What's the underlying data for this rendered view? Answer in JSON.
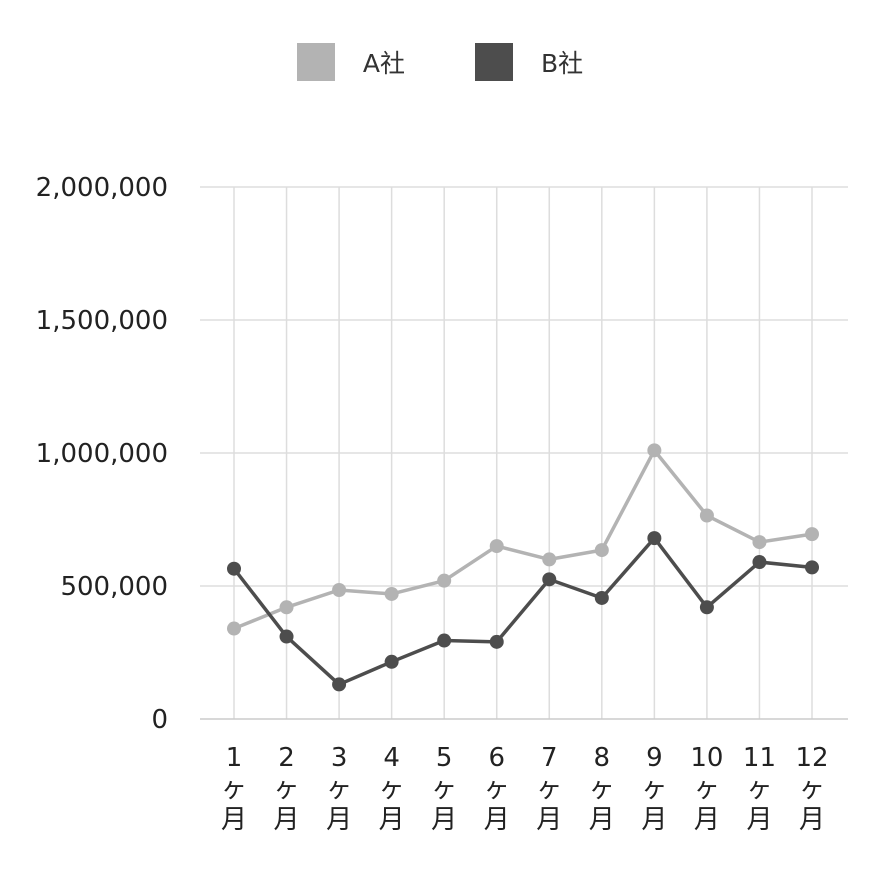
{
  "colors": {
    "A": "#b3b3b3",
    "B": "#4d4d4d",
    "grid": "#dddddd",
    "axis": "#cccccc"
  },
  "legend": {
    "a_label": "A社",
    "b_label": "B社"
  },
  "chart_data": {
    "type": "line",
    "categories": [
      "1\nヶ\n月",
      "2\nヶ\n月",
      "3\nヶ\n月",
      "4\nヶ\n月",
      "5\nヶ\n月",
      "6\nヶ\n月",
      "7\nヶ\n月",
      "8\nヶ\n月",
      "9\nヶ\n月",
      "10\nヶ\n月",
      "11\nヶ\n月",
      "12\nヶ\n月"
    ],
    "series": [
      {
        "name": "A社",
        "values": [
          340000,
          420000,
          485000,
          470000,
          520000,
          650000,
          600000,
          635000,
          1010000,
          765000,
          665000,
          695000
        ]
      },
      {
        "name": "B社",
        "values": [
          565000,
          310000,
          130000,
          215000,
          295000,
          290000,
          525000,
          455000,
          680000,
          420000,
          590000,
          570000
        ]
      }
    ],
    "yticks": [
      "0",
      "500,000",
      "1,000,000",
      "1,500,000",
      "2,000,000"
    ],
    "ylim": [
      0,
      2000000
    ],
    "grid": true,
    "legend_position": "top-center"
  }
}
